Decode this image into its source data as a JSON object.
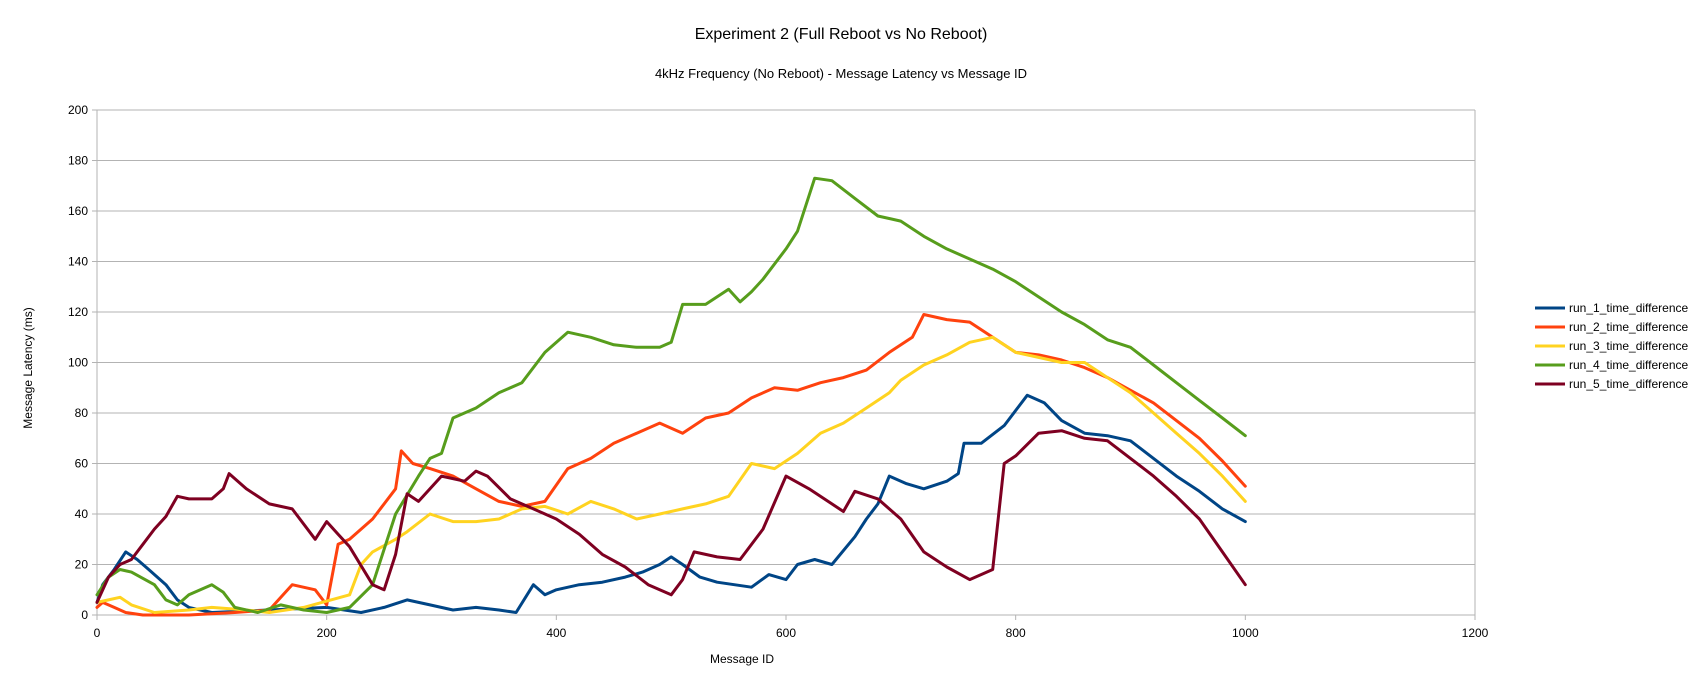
{
  "chart_data": {
    "type": "line",
    "title": "Experiment 2 (Full Reboot vs No Reboot)",
    "subtitle": "4kHz Frequency (No Reboot) - Message Latency vs Message ID",
    "xlabel": "Message ID",
    "ylabel": "Message Latency (ms)",
    "xlim": [
      0,
      1200
    ],
    "ylim": [
      0,
      200
    ],
    "x_ticks": [
      "0",
      "200",
      "400",
      "600",
      "800",
      "1000",
      "1200"
    ],
    "y_ticks": [
      "0",
      "20",
      "40",
      "60",
      "80",
      "100",
      "120",
      "140",
      "160",
      "180",
      "200"
    ],
    "grid": "horizontal",
    "legend_position": "right",
    "series": [
      {
        "name": "run_1_time_difference",
        "color": "#004586",
        "points": [
          [
            0,
            5
          ],
          [
            5,
            12
          ],
          [
            15,
            18
          ],
          [
            25,
            25
          ],
          [
            35,
            22
          ],
          [
            45,
            18
          ],
          [
            60,
            12
          ],
          [
            70,
            6
          ],
          [
            80,
            3
          ],
          [
            90,
            2
          ],
          [
            100,
            1
          ],
          [
            150,
            2
          ],
          [
            200,
            3
          ],
          [
            230,
            1
          ],
          [
            250,
            3
          ],
          [
            270,
            6
          ],
          [
            290,
            4
          ],
          [
            310,
            2
          ],
          [
            330,
            3
          ],
          [
            350,
            2
          ],
          [
            365,
            1
          ],
          [
            380,
            12
          ],
          [
            390,
            8
          ],
          [
            400,
            10
          ],
          [
            420,
            12
          ],
          [
            440,
            13
          ],
          [
            460,
            15
          ],
          [
            475,
            17
          ],
          [
            490,
            20
          ],
          [
            500,
            23
          ],
          [
            510,
            20
          ],
          [
            525,
            15
          ],
          [
            540,
            13
          ],
          [
            555,
            12
          ],
          [
            570,
            11
          ],
          [
            585,
            16
          ],
          [
            600,
            14
          ],
          [
            610,
            20
          ],
          [
            625,
            22
          ],
          [
            640,
            20
          ],
          [
            660,
            31
          ],
          [
            670,
            38
          ],
          [
            680,
            44
          ],
          [
            690,
            55
          ],
          [
            705,
            52
          ],
          [
            720,
            50
          ],
          [
            740,
            53
          ],
          [
            750,
            56
          ],
          [
            755,
            68
          ],
          [
            770,
            68
          ],
          [
            790,
            75
          ],
          [
            810,
            87
          ],
          [
            825,
            84
          ],
          [
            840,
            77
          ],
          [
            860,
            72
          ],
          [
            880,
            71
          ],
          [
            900,
            69
          ],
          [
            920,
            62
          ],
          [
            940,
            55
          ],
          [
            960,
            49
          ],
          [
            980,
            42
          ],
          [
            1000,
            37
          ]
        ]
      },
      {
        "name": "run_2_time_difference",
        "color": "#ff420e",
        "points": [
          [
            0,
            3
          ],
          [
            5,
            5
          ],
          [
            15,
            3
          ],
          [
            25,
            1
          ],
          [
            40,
            0
          ],
          [
            80,
            0
          ],
          [
            120,
            1
          ],
          [
            150,
            2
          ],
          [
            170,
            12
          ],
          [
            190,
            10
          ],
          [
            200,
            4
          ],
          [
            210,
            28
          ],
          [
            220,
            30
          ],
          [
            240,
            38
          ],
          [
            260,
            50
          ],
          [
            265,
            65
          ],
          [
            275,
            60
          ],
          [
            290,
            58
          ],
          [
            310,
            55
          ],
          [
            330,
            50
          ],
          [
            350,
            45
          ],
          [
            370,
            43
          ],
          [
            390,
            45
          ],
          [
            410,
            58
          ],
          [
            430,
            62
          ],
          [
            450,
            68
          ],
          [
            470,
            72
          ],
          [
            490,
            76
          ],
          [
            510,
            72
          ],
          [
            530,
            78
          ],
          [
            550,
            80
          ],
          [
            570,
            86
          ],
          [
            590,
            90
          ],
          [
            610,
            89
          ],
          [
            630,
            92
          ],
          [
            650,
            94
          ],
          [
            670,
            97
          ],
          [
            690,
            104
          ],
          [
            710,
            110
          ],
          [
            720,
            119
          ],
          [
            740,
            117
          ],
          [
            760,
            116
          ],
          [
            780,
            110
          ],
          [
            800,
            104
          ],
          [
            820,
            103
          ],
          [
            840,
            101
          ],
          [
            860,
            98
          ],
          [
            880,
            94
          ],
          [
            900,
            89
          ],
          [
            920,
            84
          ],
          [
            940,
            77
          ],
          [
            960,
            70
          ],
          [
            980,
            61
          ],
          [
            1000,
            51
          ]
        ]
      },
      {
        "name": "run_3_time_difference",
        "color": "#ffd320",
        "points": [
          [
            0,
            5
          ],
          [
            10,
            6
          ],
          [
            20,
            7
          ],
          [
            30,
            4
          ],
          [
            50,
            1
          ],
          [
            80,
            2
          ],
          [
            100,
            3
          ],
          [
            130,
            2
          ],
          [
            150,
            1
          ],
          [
            180,
            3
          ],
          [
            220,
            8
          ],
          [
            230,
            20
          ],
          [
            240,
            25
          ],
          [
            260,
            30
          ],
          [
            270,
            33
          ],
          [
            290,
            40
          ],
          [
            310,
            37
          ],
          [
            330,
            37
          ],
          [
            350,
            38
          ],
          [
            370,
            42
          ],
          [
            390,
            43
          ],
          [
            410,
            40
          ],
          [
            430,
            45
          ],
          [
            450,
            42
          ],
          [
            470,
            38
          ],
          [
            490,
            40
          ],
          [
            510,
            42
          ],
          [
            530,
            44
          ],
          [
            550,
            47
          ],
          [
            570,
            60
          ],
          [
            590,
            58
          ],
          [
            610,
            64
          ],
          [
            630,
            72
          ],
          [
            650,
            76
          ],
          [
            670,
            82
          ],
          [
            690,
            88
          ],
          [
            700,
            93
          ],
          [
            720,
            99
          ],
          [
            740,
            103
          ],
          [
            760,
            108
          ],
          [
            780,
            110
          ],
          [
            800,
            104
          ],
          [
            820,
            102
          ],
          [
            840,
            100
          ],
          [
            860,
            100
          ],
          [
            880,
            94
          ],
          [
            900,
            88
          ],
          [
            920,
            80
          ],
          [
            940,
            72
          ],
          [
            960,
            64
          ],
          [
            980,
            55
          ],
          [
            1000,
            45
          ]
        ]
      },
      {
        "name": "run_4_time_difference",
        "color": "#579d1c",
        "points": [
          [
            0,
            8
          ],
          [
            10,
            15
          ],
          [
            20,
            18
          ],
          [
            30,
            17
          ],
          [
            50,
            12
          ],
          [
            60,
            6
          ],
          [
            70,
            4
          ],
          [
            80,
            8
          ],
          [
            100,
            12
          ],
          [
            110,
            9
          ],
          [
            120,
            3
          ],
          [
            140,
            1
          ],
          [
            160,
            4
          ],
          [
            180,
            2
          ],
          [
            200,
            1
          ],
          [
            220,
            3
          ],
          [
            240,
            12
          ],
          [
            260,
            40
          ],
          [
            280,
            55
          ],
          [
            290,
            62
          ],
          [
            300,
            64
          ],
          [
            310,
            78
          ],
          [
            330,
            82
          ],
          [
            350,
            88
          ],
          [
            370,
            92
          ],
          [
            390,
            104
          ],
          [
            410,
            112
          ],
          [
            430,
            110
          ],
          [
            450,
            107
          ],
          [
            470,
            106
          ],
          [
            490,
            106
          ],
          [
            500,
            108
          ],
          [
            510,
            123
          ],
          [
            530,
            123
          ],
          [
            550,
            129
          ],
          [
            560,
            124
          ],
          [
            570,
            128
          ],
          [
            580,
            133
          ],
          [
            600,
            145
          ],
          [
            610,
            152
          ],
          [
            625,
            173
          ],
          [
            640,
            172
          ],
          [
            660,
            165
          ],
          [
            680,
            158
          ],
          [
            700,
            156
          ],
          [
            720,
            150
          ],
          [
            740,
            145
          ],
          [
            760,
            141
          ],
          [
            780,
            137
          ],
          [
            800,
            132
          ],
          [
            820,
            126
          ],
          [
            840,
            120
          ],
          [
            860,
            115
          ],
          [
            880,
            109
          ],
          [
            900,
            106
          ],
          [
            920,
            99
          ],
          [
            940,
            92
          ],
          [
            960,
            85
          ],
          [
            980,
            78
          ],
          [
            1000,
            71
          ]
        ]
      },
      {
        "name": "run_5_time_difference",
        "color": "#7e0021",
        "points": [
          [
            0,
            5
          ],
          [
            10,
            15
          ],
          [
            20,
            20
          ],
          [
            30,
            22
          ],
          [
            40,
            28
          ],
          [
            50,
            34
          ],
          [
            60,
            39
          ],
          [
            70,
            47
          ],
          [
            80,
            46
          ],
          [
            90,
            46
          ],
          [
            100,
            46
          ],
          [
            110,
            50
          ],
          [
            115,
            56
          ],
          [
            130,
            50
          ],
          [
            150,
            44
          ],
          [
            170,
            42
          ],
          [
            190,
            30
          ],
          [
            200,
            37
          ],
          [
            210,
            32
          ],
          [
            220,
            27
          ],
          [
            240,
            12
          ],
          [
            250,
            10
          ],
          [
            260,
            24
          ],
          [
            270,
            48
          ],
          [
            280,
            45
          ],
          [
            290,
            50
          ],
          [
            300,
            55
          ],
          [
            310,
            54
          ],
          [
            320,
            53
          ],
          [
            330,
            57
          ],
          [
            340,
            55
          ],
          [
            360,
            46
          ],
          [
            380,
            42
          ],
          [
            400,
            38
          ],
          [
            420,
            32
          ],
          [
            440,
            24
          ],
          [
            460,
            19
          ],
          [
            480,
            12
          ],
          [
            500,
            8
          ],
          [
            510,
            14
          ],
          [
            520,
            25
          ],
          [
            540,
            23
          ],
          [
            560,
            22
          ],
          [
            580,
            34
          ],
          [
            600,
            55
          ],
          [
            620,
            50
          ],
          [
            640,
            44
          ],
          [
            650,
            41
          ],
          [
            660,
            49
          ],
          [
            680,
            46
          ],
          [
            700,
            38
          ],
          [
            720,
            25
          ],
          [
            740,
            19
          ],
          [
            760,
            14
          ],
          [
            780,
            18
          ],
          [
            790,
            60
          ],
          [
            800,
            63
          ],
          [
            820,
            72
          ],
          [
            840,
            73
          ],
          [
            860,
            70
          ],
          [
            880,
            69
          ],
          [
            900,
            62
          ],
          [
            920,
            55
          ],
          [
            940,
            47
          ],
          [
            960,
            38
          ],
          [
            980,
            25
          ],
          [
            1000,
            12
          ]
        ]
      }
    ]
  }
}
